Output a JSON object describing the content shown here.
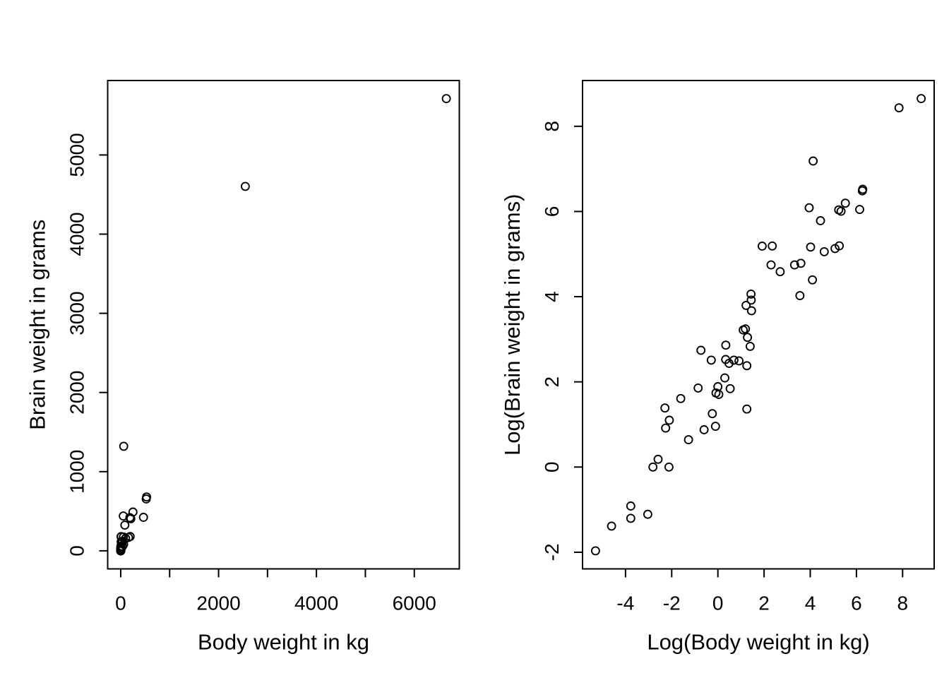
{
  "figure": {
    "background": "#ffffff",
    "foreground": "#000000",
    "marker": "open-circle"
  },
  "chart_data": [
    {
      "type": "scatter",
      "title": "",
      "xlabel": "Body weight in kg",
      "ylabel": "Brain weight in grams",
      "xlim": [
        -266.2,
        6920.2
      ],
      "ylim": [
        -228.3,
        5940.5
      ],
      "xticks": [
        0,
        1000,
        2000,
        3000,
        4000,
        5000,
        6000
      ],
      "xtick_labels": [
        "0",
        "",
        "2000",
        "",
        "4000",
        "",
        "6000"
      ],
      "yticks": [
        0,
        1000,
        2000,
        3000,
        4000,
        5000
      ],
      "ytick_labels": [
        "0",
        "1000",
        "2000",
        "3000",
        "4000",
        "5000"
      ],
      "grid": false,
      "legend": null,
      "points": [
        [
          3.385,
          44.5
        ],
        [
          0.48,
          15.5
        ],
        [
          1.35,
          8.1
        ],
        [
          465,
          423
        ],
        [
          36.33,
          119.5
        ],
        [
          27.66,
          115
        ],
        [
          14.83,
          98.2
        ],
        [
          1.04,
          5.5
        ],
        [
          4.19,
          58
        ],
        [
          0.425,
          6.4
        ],
        [
          0.101,
          4
        ],
        [
          0.92,
          5.7
        ],
        [
          1,
          6.6
        ],
        [
          0.005,
          0.14
        ],
        [
          0.06,
          1
        ],
        [
          3.5,
          10.8
        ],
        [
          2,
          12.3
        ],
        [
          1.7,
          6.3
        ],
        [
          2547,
          4603
        ],
        [
          0.023,
          0.3
        ],
        [
          187.1,
          419
        ],
        [
          521,
          655
        ],
        [
          0.785,
          3.5
        ],
        [
          10,
          115
        ],
        [
          3.3,
          25.6
        ],
        [
          0.2,
          5
        ],
        [
          1.41,
          17.5
        ],
        [
          529,
          680
        ],
        [
          207,
          406
        ],
        [
          85,
          325
        ],
        [
          0.75,
          12.3
        ],
        [
          62,
          1320
        ],
        [
          6654,
          5712
        ],
        [
          3.5,
          3.9
        ],
        [
          6.8,
          179
        ],
        [
          35,
          56
        ],
        [
          4.05,
          17
        ],
        [
          0.12,
          1
        ],
        [
          0.023,
          0.4
        ],
        [
          0.01,
          0.25
        ],
        [
          1.4,
          12.5
        ],
        [
          250,
          490
        ],
        [
          2.5,
          12.1
        ],
        [
          55.5,
          175
        ],
        [
          100,
          157
        ],
        [
          52.16,
          440
        ],
        [
          10.55,
          179.5
        ],
        [
          0.55,
          2.4
        ],
        [
          60,
          81
        ],
        [
          3.6,
          21
        ],
        [
          4.288,
          39.2
        ],
        [
          0.28,
          1.9
        ],
        [
          0.075,
          1.2
        ],
        [
          0.122,
          3
        ],
        [
          0.048,
          0.33
        ],
        [
          192,
          180
        ],
        [
          3,
          25
        ],
        [
          160,
          169
        ],
        [
          0.9,
          2.6
        ],
        [
          1.62,
          11.4
        ],
        [
          0.104,
          2.5
        ],
        [
          4.235,
          50.4
        ]
      ]
    },
    {
      "type": "scatter",
      "title": "",
      "xlabel": "Log(Body weight in kg)",
      "ylabel": "Log(Brain weight in grams)",
      "xlim": [
        -5.862,
        9.367
      ],
      "ylim": [
        -2.391,
        9.075
      ],
      "xticks": [
        -4,
        -2,
        0,
        2,
        4,
        6,
        8
      ],
      "xtick_labels": [
        "-4",
        "-2",
        "0",
        "2",
        "4",
        "6",
        "8"
      ],
      "yticks": [
        -2,
        0,
        2,
        4,
        6,
        8
      ],
      "ytick_labels": [
        "-2",
        "0",
        "2",
        "4",
        "6",
        "8"
      ],
      "grid": false,
      "legend": null,
      "points": [
        [
          1.219,
          3.795
        ],
        [
          -0.734,
          2.741
        ],
        [
          0.3,
          2.092
        ],
        [
          6.142,
          6.047
        ],
        [
          3.593,
          4.783
        ],
        [
          3.32,
          4.745
        ],
        [
          2.697,
          4.587
        ],
        [
          0.039,
          1.705
        ],
        [
          1.433,
          4.06
        ],
        [
          -0.856,
          1.856
        ],
        [
          -2.293,
          1.386
        ],
        [
          -0.083,
          1.74
        ],
        [
          0,
          1.887
        ],
        [
          -5.298,
          -1.966
        ],
        [
          -2.813,
          0
        ],
        [
          1.253,
          2.38
        ],
        [
          0.693,
          2.51
        ],
        [
          0.531,
          1.841
        ],
        [
          7.843,
          8.434
        ],
        [
          -3.772,
          -1.204
        ],
        [
          5.232,
          6.038
        ],
        [
          6.256,
          6.485
        ],
        [
          -0.242,
          1.253
        ],
        [
          2.303,
          4.745
        ],
        [
          1.194,
          3.243
        ],
        [
          -1.609,
          1.609
        ],
        [
          0.344,
          2.862
        ],
        [
          6.271,
          6.522
        ],
        [
          5.333,
          6.006
        ],
        [
          4.443,
          5.784
        ],
        [
          -0.288,
          2.51
        ],
        [
          4.127,
          7.185
        ],
        [
          8.803,
          8.65
        ],
        [
          1.253,
          1.361
        ],
        [
          1.917,
          5.187
        ],
        [
          3.555,
          4.025
        ],
        [
          1.399,
          2.833
        ],
        [
          -2.12,
          0
        ],
        [
          -3.772,
          -0.916
        ],
        [
          -4.605,
          -1.386
        ],
        [
          0.336,
          2.526
        ],
        [
          5.521,
          6.194
        ],
        [
          0.916,
          2.493
        ],
        [
          4.016,
          5.165
        ],
        [
          4.605,
          5.056
        ],
        [
          3.954,
          6.087
        ],
        [
          2.356,
          5.19
        ],
        [
          -0.598,
          0.875
        ],
        [
          4.094,
          4.394
        ],
        [
          1.281,
          3.045
        ],
        [
          1.456,
          3.669
        ],
        [
          -1.273,
          0.642
        ],
        [
          -2.59,
          0.182
        ],
        [
          -2.104,
          1.099
        ],
        [
          -3.037,
          -1.109
        ],
        [
          5.257,
          5.193
        ],
        [
          1.099,
          3.219
        ],
        [
          5.075,
          5.13
        ],
        [
          -0.105,
          0.956
        ],
        [
          0.482,
          2.434
        ],
        [
          -2.263,
          0.916
        ],
        [
          1.443,
          3.92
        ]
      ]
    }
  ]
}
